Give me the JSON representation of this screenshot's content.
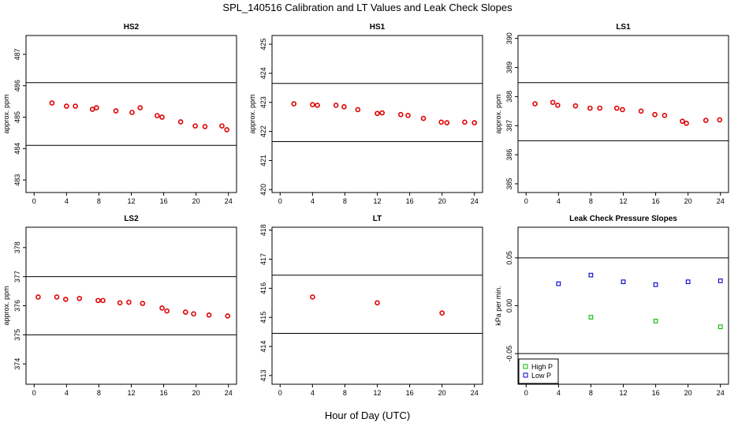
{
  "figure": {
    "title": "SPL_140516  Calibration and LT Values and Leak Check Slopes",
    "xlabel": "Hour of Day (UTC)"
  },
  "chart_data": [
    {
      "type": "scatter",
      "title": "HS2",
      "ylabel": "approx. ppm",
      "xlim": [
        -1,
        25
      ],
      "ylim": [
        482.6,
        487.6
      ],
      "xticks": [
        0,
        4,
        8,
        12,
        16,
        20,
        24
      ],
      "yticks": [
        483,
        484,
        485,
        486,
        487
      ],
      "hlines": [
        486.1,
        484.1
      ],
      "series": [
        {
          "color": "#e00000",
          "x": [
            2.2,
            4.0,
            5.1,
            7.2,
            7.7,
            10.1,
            12.1,
            13.1,
            15.2,
            15.8,
            18.1,
            19.9,
            21.1,
            23.2,
            23.8
          ],
          "y": [
            485.45,
            485.35,
            485.35,
            485.25,
            485.3,
            485.2,
            485.15,
            485.3,
            485.05,
            485.0,
            484.85,
            484.72,
            484.7,
            484.72,
            484.6
          ]
        }
      ]
    },
    {
      "type": "scatter",
      "title": "HS1",
      "ylabel": "approx. ppm",
      "xlim": [
        -1,
        25
      ],
      "ylim": [
        419.9,
        425.3
      ],
      "xticks": [
        0,
        4,
        8,
        12,
        16,
        20,
        24
      ],
      "yticks": [
        420,
        421,
        422,
        423,
        424,
        425
      ],
      "hlines": [
        423.65,
        421.65
      ],
      "series": [
        {
          "color": "#e00000",
          "x": [
            1.7,
            4.0,
            4.6,
            6.9,
            7.9,
            9.6,
            12.0,
            12.6,
            14.9,
            15.8,
            17.7,
            19.9,
            20.6,
            22.8,
            24.0
          ],
          "y": [
            422.95,
            422.92,
            422.9,
            422.9,
            422.85,
            422.75,
            422.62,
            422.64,
            422.58,
            422.55,
            422.45,
            422.32,
            422.3,
            422.32,
            422.3
          ]
        }
      ]
    },
    {
      "type": "scatter",
      "title": "LS1",
      "ylabel": "approx. ppm",
      "xlim": [
        -1,
        25
      ],
      "ylim": [
        384.7,
        390.1
      ],
      "xticks": [
        0,
        4,
        8,
        12,
        16,
        20,
        24
      ],
      "yticks": [
        385,
        386,
        387,
        388,
        389,
        390
      ],
      "hlines": [
        388.48,
        386.48
      ],
      "series": [
        {
          "color": "#e00000",
          "x": [
            1.1,
            3.3,
            3.9,
            6.1,
            7.9,
            9.1,
            11.2,
            11.9,
            14.2,
            15.9,
            17.1,
            19.3,
            19.8,
            22.2,
            23.9
          ],
          "y": [
            387.75,
            387.8,
            387.7,
            387.68,
            387.6,
            387.6,
            387.6,
            387.55,
            387.5,
            387.38,
            387.35,
            387.15,
            387.08,
            387.18,
            387.2
          ]
        }
      ]
    },
    {
      "type": "scatter",
      "title": "LS2",
      "ylabel": "approx. ppm",
      "xlim": [
        -1,
        25
      ],
      "ylim": [
        373.3,
        378.7
      ],
      "xticks": [
        0,
        4,
        8,
        12,
        16,
        20,
        24
      ],
      "yticks": [
        374,
        375,
        376,
        377,
        378
      ],
      "hlines": [
        377.0,
        375.0
      ],
      "series": [
        {
          "color": "#e00000",
          "x": [
            0.5,
            2.8,
            3.9,
            5.6,
            7.9,
            8.5,
            10.6,
            11.7,
            13.4,
            15.8,
            16.4,
            18.7,
            19.7,
            21.6,
            23.9
          ],
          "y": [
            376.3,
            376.3,
            376.22,
            376.25,
            376.18,
            376.18,
            376.1,
            376.12,
            376.08,
            375.92,
            375.82,
            375.78,
            375.72,
            375.68,
            375.65
          ]
        }
      ]
    },
    {
      "type": "scatter",
      "title": "LT",
      "ylabel": "",
      "xlim": [
        -1,
        25
      ],
      "ylim": [
        412.7,
        418.1
      ],
      "xticks": [
        0,
        4,
        8,
        12,
        16,
        20,
        24
      ],
      "yticks": [
        413,
        414,
        415,
        416,
        417,
        418
      ],
      "hlines": [
        416.45,
        414.45
      ],
      "series": [
        {
          "color": "#e00000",
          "x": [
            4.0,
            12.0,
            20.0
          ],
          "y": [
            415.7,
            415.5,
            415.15
          ]
        }
      ]
    },
    {
      "type": "scatter",
      "title": "Leak Check Pressure Slopes",
      "ylabel": "kPa per min.",
      "xlim": [
        -1,
        25
      ],
      "ylim": [
        -0.082,
        0.082
      ],
      "xticks": [
        0,
        4,
        8,
        12,
        16,
        20,
        24
      ],
      "yticks": [
        -0.05,
        0.0,
        0.05
      ],
      "ytick_labels": [
        "-0.05",
        "0.00",
        "0.05"
      ],
      "hlines": [
        0.05,
        -0.05
      ],
      "legend": {
        "position": "bottom-left",
        "entries": [
          {
            "name": "High P",
            "color": "#00bb00"
          },
          {
            "name": "Low P",
            "color": "#0000cc"
          }
        ]
      },
      "series": [
        {
          "name": "High P",
          "color": "#00bb00",
          "marker": "square",
          "x": [
            8,
            16,
            24
          ],
          "y": [
            -0.012,
            -0.016,
            -0.022
          ]
        },
        {
          "name": "Low P",
          "color": "#0000cc",
          "marker": "square",
          "x": [
            4,
            8,
            12,
            16,
            20,
            24
          ],
          "y": [
            0.023,
            0.032,
            0.025,
            0.022,
            0.025,
            0.026
          ]
        }
      ]
    }
  ]
}
